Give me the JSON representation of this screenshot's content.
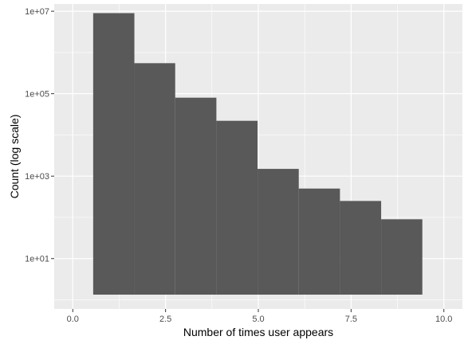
{
  "chart_data": {
    "type": "bar",
    "title": "",
    "xlabel": "Number of times user appears",
    "ylabel": "Count (log scale)",
    "y_scale": "log10",
    "xlim": [
      -0.5,
      10.5
    ],
    "ylim": [
      0.6,
      15000000
    ],
    "x_ticks": [
      0.0,
      2.5,
      5.0,
      7.5,
      10.0
    ],
    "x_tick_labels": [
      "0.0",
      "2.5",
      "5.0",
      "7.5",
      "10.0"
    ],
    "y_ticks": [
      10,
      1000,
      100000,
      10000000
    ],
    "y_tick_labels": [
      "1e+01",
      "1e+03",
      "1e+05",
      "1e+07"
    ],
    "grid": true,
    "bins": [
      {
        "x0": 0.55,
        "x1": 1.66,
        "value": 9000000
      },
      {
        "x0": 1.66,
        "x1": 2.76,
        "value": 550000
      },
      {
        "x0": 2.76,
        "x1": 3.87,
        "value": 80000
      },
      {
        "x0": 3.87,
        "x1": 4.98,
        "value": 22000
      },
      {
        "x0": 4.98,
        "x1": 6.09,
        "value": 1500
      },
      {
        "x0": 6.09,
        "x1": 7.2,
        "value": 500
      },
      {
        "x0": 7.2,
        "x1": 8.31,
        "value": 250
      },
      {
        "x0": 8.31,
        "x1": 9.42,
        "value": 90
      }
    ],
    "colors": {
      "panel": "#EBEBEB",
      "grid_major": "#FFFFFF",
      "bar_fill": "#595959"
    }
  }
}
